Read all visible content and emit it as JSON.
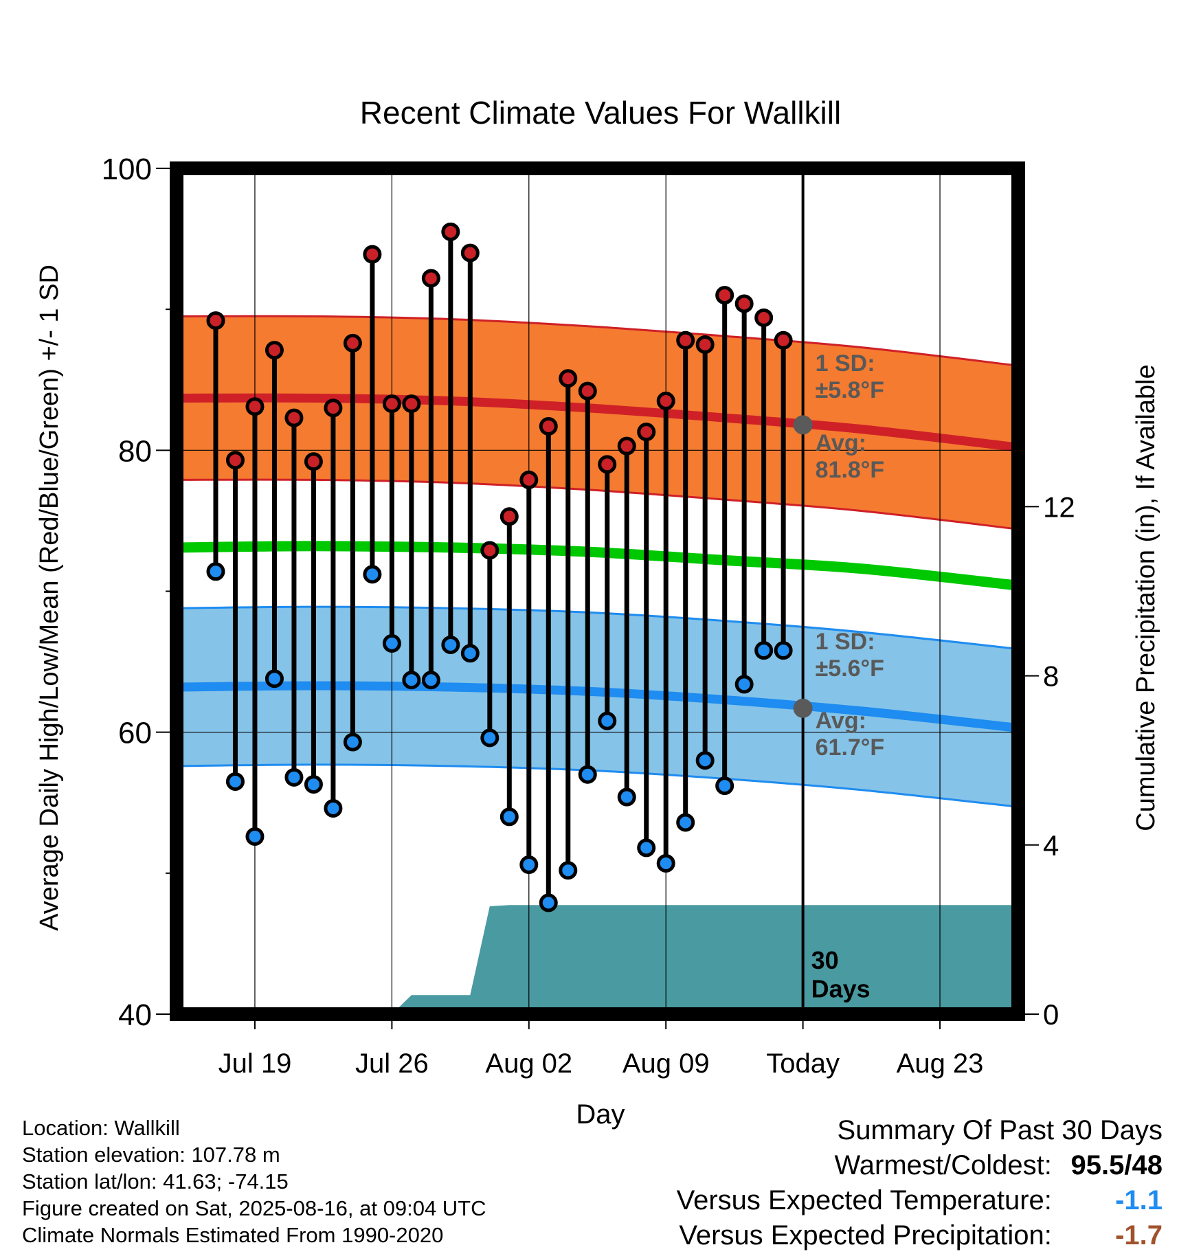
{
  "chart_data": {
    "type": "line",
    "title": "Recent Climate Values For Wallkill",
    "xlabel": "Day",
    "ylabel": "Average Daily High/Low/Mean (Red/Blue/Green) +/- 1 SD",
    "y2label": "Cumulative Precipitation (in), If Available",
    "ylim": [
      40,
      100
    ],
    "y_ticks": [
      "40",
      "60",
      "80",
      "100"
    ],
    "y2lim": [
      0,
      20
    ],
    "y2_ticks": [
      "0",
      "4",
      "8",
      "12"
    ],
    "x_range_days": [
      "2025-07-15",
      "2025-08-27"
    ],
    "x_ticks": [
      {
        "date": "2025-07-19",
        "label": "Jul 19"
      },
      {
        "date": "2025-07-26",
        "label": "Jul 26"
      },
      {
        "date": "2025-08-02",
        "label": "Aug 02"
      },
      {
        "date": "2025-08-09",
        "label": "Aug 09"
      },
      {
        "date": "2025-08-16",
        "label": "Today"
      },
      {
        "date": "2025-08-23",
        "label": "Aug 23"
      }
    ],
    "today": "2025-08-16",
    "grid": true,
    "daily_temps": {
      "dates": [
        "2025-07-17",
        "2025-07-18",
        "2025-07-19",
        "2025-07-20",
        "2025-07-21",
        "2025-07-22",
        "2025-07-23",
        "2025-07-24",
        "2025-07-25",
        "2025-07-26",
        "2025-07-27",
        "2025-07-28",
        "2025-07-29",
        "2025-07-30",
        "2025-07-31",
        "2025-08-01",
        "2025-08-02",
        "2025-08-03",
        "2025-08-04",
        "2025-08-05",
        "2025-08-06",
        "2025-08-07",
        "2025-08-08",
        "2025-08-09",
        "2025-08-10",
        "2025-08-11",
        "2025-08-12",
        "2025-08-13",
        "2025-08-14",
        "2025-08-15"
      ],
      "highs": [
        89.2,
        79.3,
        83.1,
        87.1,
        82.3,
        79.2,
        83.0,
        87.6,
        93.9,
        83.3,
        83.3,
        92.2,
        95.5,
        94.0,
        72.9,
        75.3,
        77.9,
        81.7,
        85.1,
        84.2,
        79.0,
        80.3,
        81.3,
        83.5,
        87.8,
        87.5,
        91.0,
        90.4,
        89.4,
        87.8
      ],
      "lows": [
        71.4,
        56.5,
        52.6,
        63.8,
        56.8,
        56.3,
        54.6,
        59.3,
        71.2,
        66.3,
        63.7,
        63.7,
        66.2,
        65.6,
        59.6,
        54.0,
        50.6,
        47.9,
        50.2,
        57.0,
        60.8,
        55.4,
        51.8,
        50.7,
        53.6,
        58.0,
        56.2,
        63.4,
        65.8,
        65.8
      ]
    },
    "normals": {
      "dates": [
        "2025-07-15",
        "2025-07-22",
        "2025-07-29",
        "2025-08-05",
        "2025-08-12",
        "2025-08-19",
        "2025-08-27"
      ],
      "avg_high": [
        83.7,
        83.7,
        83.5,
        83.0,
        82.3,
        81.5,
        80.2
      ],
      "avg_high_plus_sd": [
        89.5,
        89.5,
        89.3,
        88.8,
        88.1,
        87.3,
        86.0
      ],
      "avg_high_minus_sd": [
        77.9,
        77.9,
        77.7,
        77.2,
        76.5,
        75.7,
        74.4
      ],
      "avg_mean": [
        73.1,
        73.2,
        73.1,
        72.8,
        72.2,
        71.6,
        70.4
      ],
      "avg_low": [
        63.2,
        63.3,
        63.2,
        62.9,
        62.3,
        61.5,
        60.3
      ],
      "avg_low_plus_sd": [
        68.8,
        68.9,
        68.8,
        68.5,
        67.9,
        67.1,
        65.9
      ],
      "avg_low_minus_sd": [
        57.6,
        57.7,
        57.6,
        57.3,
        56.7,
        55.9,
        54.7
      ]
    },
    "cumulative_precip": {
      "dates": [
        "2025-07-15",
        "2025-07-26",
        "2025-07-27",
        "2025-07-30",
        "2025-07-31",
        "2025-08-01",
        "2025-08-16",
        "2025-08-27"
      ],
      "values": [
        0.0,
        0.0,
        0.45,
        0.45,
        2.55,
        2.58,
        2.58,
        2.58
      ]
    },
    "annotations": {
      "high_sd": "1 SD:\n±5.8°F",
      "high_avg": "Avg:\n81.8°F",
      "low_sd": "1 SD:\n±5.6°F",
      "low_avg": "Avg:\n61.7°F",
      "period": "30\nDays"
    },
    "today_markers": {
      "high": 81.8,
      "low": 61.7
    },
    "colors": {
      "high_band": "#f47b30",
      "high_line": "#cf2027",
      "mean_line": "#00c800",
      "low_band": "#85c3e8",
      "low_line": "#1e8cf0",
      "precip": "#4a9aa2",
      "annotation_text": "#595959",
      "high_dot": "#c92127",
      "low_dot": "#1e8cf0"
    }
  },
  "info": {
    "location": "Location: Wallkill",
    "elevation": "Station elevation: 107.78 m",
    "latlon": "Station lat/lon: 41.63; -74.15",
    "created": "Figure created on Sat, 2025-08-16, at 09:04 UTC",
    "normals": "Climate Normals Estimated From 1990-2020"
  },
  "summary": {
    "title": "Summary Of Past 30 Days",
    "warm_cold_label": "Warmest/Coldest:",
    "warm_cold_value": "95.5/48",
    "temp_label": "Versus Expected Temperature:",
    "temp_value": "-1.1",
    "temp_color": "#1e8cf0",
    "precip_label": "Versus Expected Precipitation:",
    "precip_value": "-1.7",
    "precip_color": "#a0522d"
  }
}
